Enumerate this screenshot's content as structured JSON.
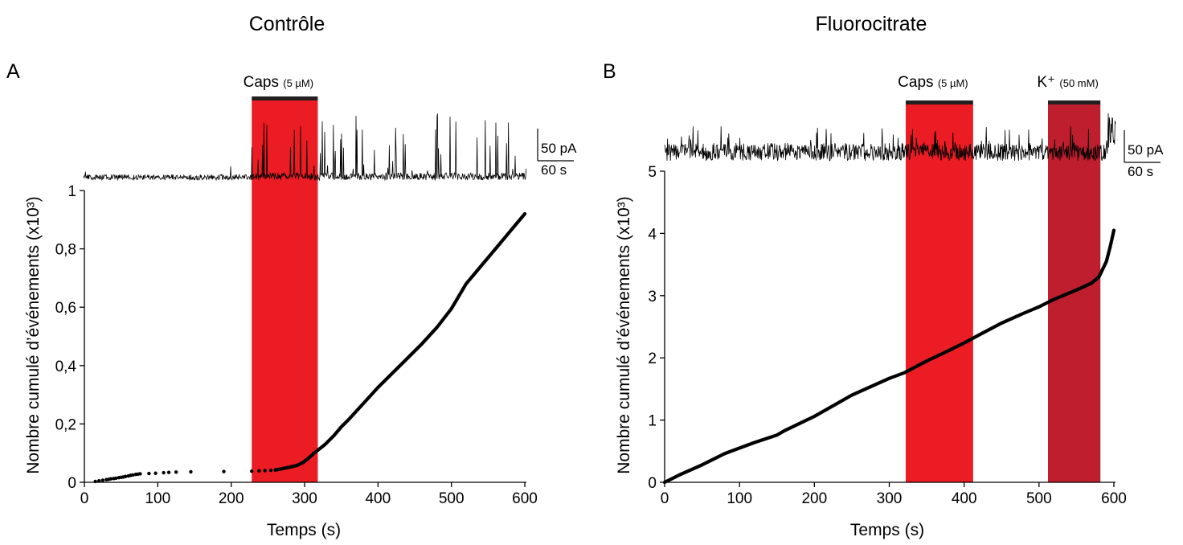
{
  "chart_data": [
    {
      "panel": "A",
      "title": "Contrôle",
      "type": "scatter",
      "xlabel": "Temps (s)",
      "ylabel": "Nombre cumulé d’événements  (x10³)",
      "xlim": [
        0,
        600
      ],
      "ylim": [
        0,
        1
      ],
      "xticks": [
        "0",
        "100",
        "200",
        "300",
        "400",
        "500",
        "600"
      ],
      "yticks": [
        "0",
        "0,2",
        "0,4",
        "0,6",
        "0,8",
        "1"
      ],
      "ytick_values": [
        0,
        0.2,
        0.4,
        0.6,
        0.8,
        1
      ],
      "bars": [
        {
          "label": "Caps",
          "conc": "(5 µM)",
          "x_start": 228,
          "x_end": 318,
          "color": "#ec1c24"
        }
      ],
      "scale_bar": {
        "y": "50 pA",
        "x": "60 s"
      },
      "scatter_points": [
        [
          15,
          0.003
        ],
        [
          20,
          0.005
        ],
        [
          25,
          0.007
        ],
        [
          30,
          0.009
        ],
        [
          33,
          0.01
        ],
        [
          36,
          0.012
        ],
        [
          40,
          0.013
        ],
        [
          43,
          0.014
        ],
        [
          47,
          0.016
        ],
        [
          50,
          0.017
        ],
        [
          53,
          0.018
        ],
        [
          56,
          0.02
        ],
        [
          60,
          0.022
        ],
        [
          63,
          0.024
        ],
        [
          66,
          0.025
        ],
        [
          70,
          0.027
        ],
        [
          73,
          0.028
        ],
        [
          76,
          0.029
        ],
        [
          88,
          0.03
        ],
        [
          97,
          0.031
        ],
        [
          108,
          0.033
        ],
        [
          115,
          0.034
        ],
        [
          125,
          0.035
        ],
        [
          145,
          0.036
        ],
        [
          190,
          0.037
        ],
        [
          228,
          0.038
        ],
        [
          238,
          0.039
        ],
        [
          246,
          0.04
        ],
        [
          254,
          0.041
        ],
        [
          260,
          0.042
        ]
      ],
      "series": [
        {
          "x": [
            262,
            270,
            280,
            290,
            298,
            305,
            312,
            318,
            328,
            340,
            350,
            360,
            380,
            400,
            420,
            440,
            460,
            480,
            500,
            520,
            540,
            560,
            580,
            600
          ],
          "y": [
            0.043,
            0.047,
            0.052,
            0.058,
            0.068,
            0.082,
            0.098,
            0.11,
            0.13,
            0.16,
            0.19,
            0.215,
            0.27,
            0.325,
            0.375,
            0.425,
            0.475,
            0.53,
            0.595,
            0.68,
            0.74,
            0.8,
            0.86,
            0.92
          ]
        }
      ]
    },
    {
      "panel": "B",
      "title": "Fluorocitrate",
      "type": "line",
      "xlabel": "Temps (s)",
      "ylabel": "Nombre cumulé d’événements (x10³)",
      "xlim": [
        0,
        600
      ],
      "ylim": [
        0,
        5
      ],
      "xticks": [
        "0",
        "100",
        "200",
        "300",
        "400",
        "500",
        "600"
      ],
      "yticks": [
        "0",
        "1",
        "2",
        "3",
        "4",
        "5"
      ],
      "ytick_values": [
        0,
        1,
        2,
        3,
        4,
        5
      ],
      "bars": [
        {
          "label": "Caps",
          "conc": "(5 µM)",
          "x_start": 322,
          "x_end": 412,
          "color": "#ec1c24"
        },
        {
          "label": "K⁺",
          "conc": "(50 mM)",
          "x_start": 512,
          "x_end": 582,
          "color": "#be1e2d"
        }
      ],
      "scale_bar": {
        "y": "50 pA",
        "x": "60 s"
      },
      "series": [
        {
          "x": [
            0,
            20,
            50,
            80,
            100,
            120,
            150,
            160,
            200,
            250,
            300,
            320,
            350,
            380,
            400,
            420,
            450,
            480,
            500,
            520,
            550,
            570,
            580,
            590,
            595,
            600
          ],
          "y": [
            0,
            0.12,
            0.28,
            0.46,
            0.55,
            0.64,
            0.76,
            0.83,
            1.06,
            1.4,
            1.67,
            1.76,
            1.95,
            2.12,
            2.24,
            2.37,
            2.56,
            2.72,
            2.82,
            2.94,
            3.09,
            3.2,
            3.3,
            3.55,
            3.78,
            4.05
          ]
        }
      ]
    }
  ]
}
